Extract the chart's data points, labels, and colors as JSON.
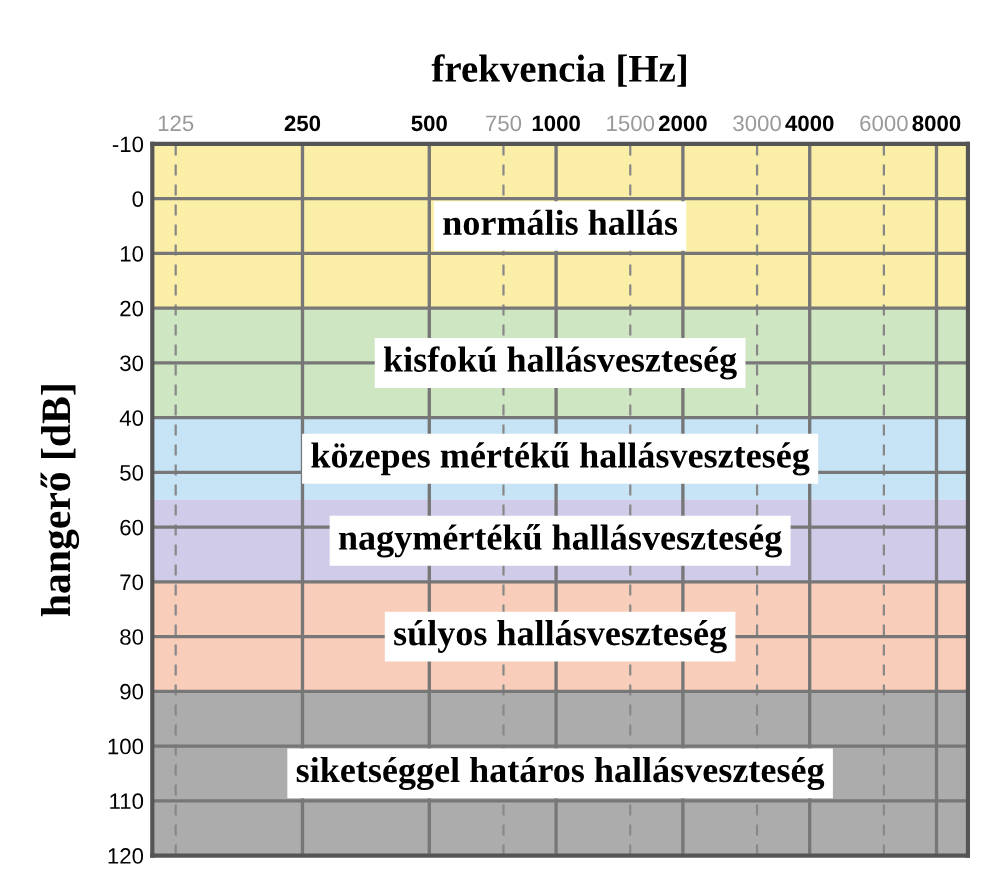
{
  "chart_data": {
    "type": "line",
    "xlabel": "frekvencia [Hz]",
    "ylabel": "hangerő [dB]",
    "log": "x",
    "xlim": [
      110,
      9500
    ],
    "xticks": [
      125,
      250,
      500,
      750,
      1000,
      1500,
      2000,
      3000,
      4000,
      6000,
      8000
    ],
    "ylim": [
      120,
      -10
    ],
    "yticks": [
      -10,
      0,
      10,
      20,
      30,
      40,
      50,
      60,
      70,
      80,
      90,
      100,
      110,
      120
    ],
    "grid": true,
    "bands": [
      {
        "axis": "y",
        "from": -10,
        "to": 20,
        "label": "normális hallás",
        "color": "#fbeea6"
      },
      {
        "axis": "y",
        "from": 20,
        "to": 40,
        "label": "kisfokú hallásveszteség",
        "color": "#cfe6c2"
      },
      {
        "axis": "y",
        "from": 40,
        "to": 55,
        "label": "közepes mértékű hallásveszteség",
        "color": "#c6e4f6"
      },
      {
        "axis": "y",
        "from": 55,
        "to": 70,
        "label": "nagymértékű hallásveszteség",
        "color": "#d0cbe8"
      },
      {
        "axis": "y",
        "from": 70,
        "to": 90,
        "label": "súlyos hallásveszteség",
        "color": "#f8cdb9"
      },
      {
        "axis": "y",
        "from": 90,
        "to": 120,
        "label": "siketséggel határos hallásveszteség",
        "color": "#acacac"
      }
    ]
  }
}
